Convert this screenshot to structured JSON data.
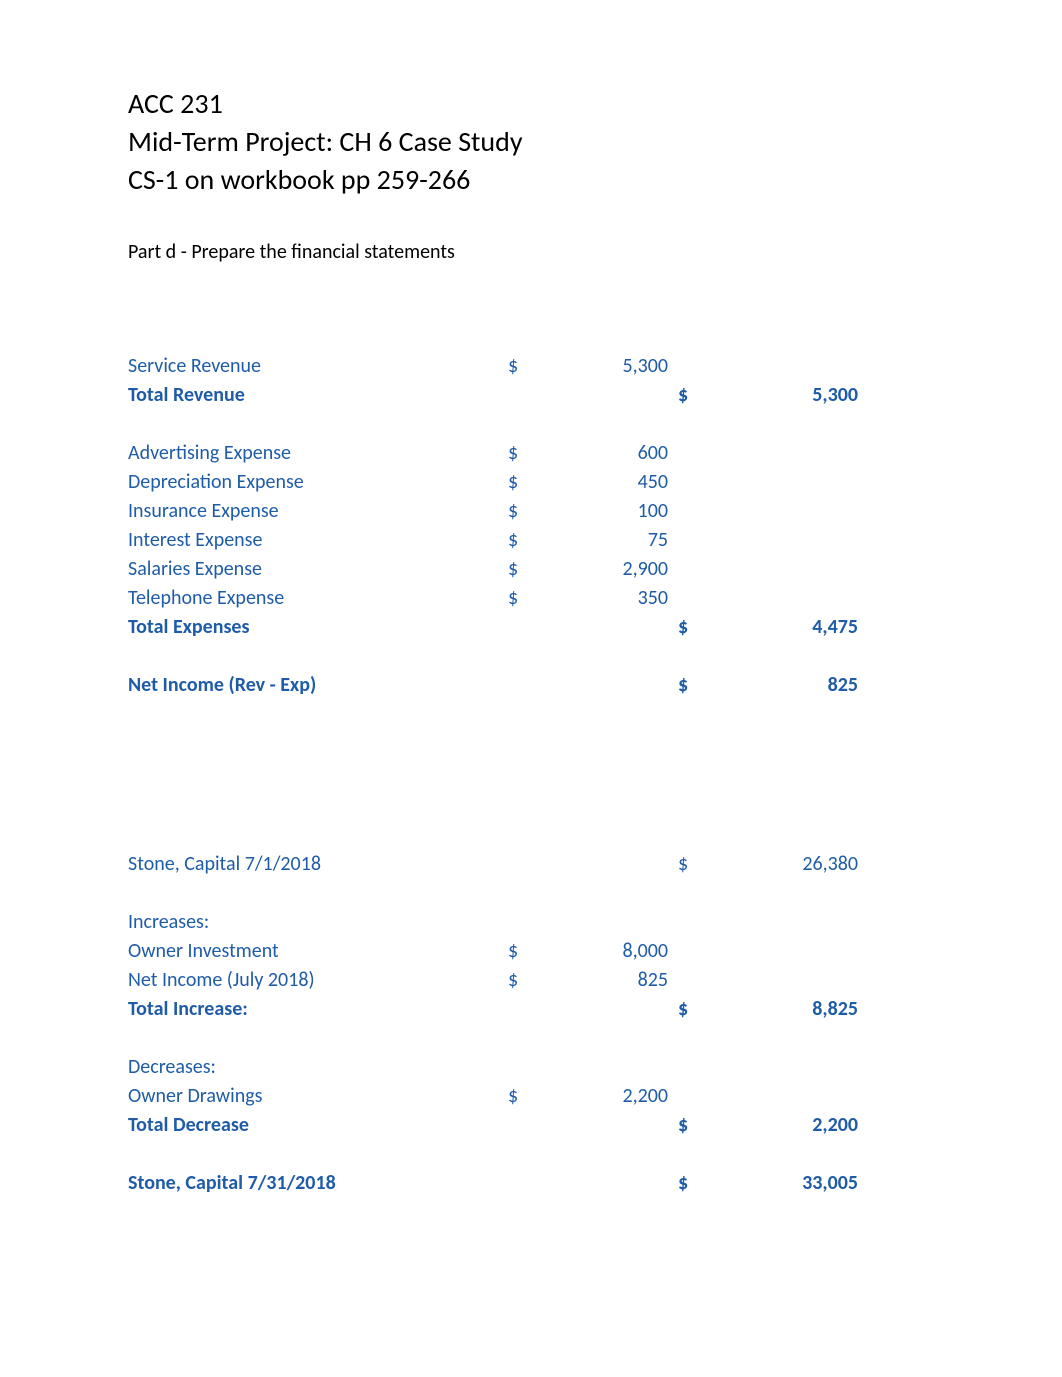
{
  "colors": {
    "text_black": "#000000",
    "text_blue": "#1f5ca8",
    "background": "#ffffff"
  },
  "typography": {
    "header_fontsize": 28,
    "subtitle_fontsize": 20,
    "row_fontsize": 20,
    "font_family": "Calibri"
  },
  "header": {
    "line1": "ACC 231",
    "line2": "Mid-Term Project: CH 6 Case Study",
    "line3": "CS-1 on workbook pp 259-266"
  },
  "subtitle": "Part d  - Prepare the financial statements",
  "income_statement": {
    "rows": [
      {
        "label": "Service Revenue",
        "col1_sym": "$",
        "col1_val": "5,300",
        "col2_sym": "",
        "col2_val": "",
        "bold": false
      },
      {
        "label": "Total Revenue",
        "col1_sym": "",
        "col1_val": "",
        "col2_sym": "$",
        "col2_val": "5,300",
        "bold": true
      }
    ],
    "expense_rows": [
      {
        "label": "Advertising Expense",
        "col1_sym": "$",
        "col1_val": "600",
        "col2_sym": "",
        "col2_val": "",
        "bold": false
      },
      {
        "label": "Depreciation Expense",
        "col1_sym": "$",
        "col1_val": "450",
        "col2_sym": "",
        "col2_val": "",
        "bold": false
      },
      {
        "label": "Insurance Expense",
        "col1_sym": "$",
        "col1_val": "100",
        "col2_sym": "",
        "col2_val": "",
        "bold": false
      },
      {
        "label": "Interest Expense",
        "col1_sym": "$",
        "col1_val": "75",
        "col2_sym": "",
        "col2_val": "",
        "bold": false
      },
      {
        "label": "Salaries Expense",
        "col1_sym": "$",
        "col1_val": "2,900",
        "col2_sym": "",
        "col2_val": "",
        "bold": false
      },
      {
        "label": "Telephone Expense",
        "col1_sym": "$",
        "col1_val": "350",
        "col2_sym": "",
        "col2_val": "",
        "bold": false
      },
      {
        "label": "Total Expenses",
        "col1_sym": "",
        "col1_val": "",
        "col2_sym": "$",
        "col2_val": "4,475",
        "bold": true
      }
    ],
    "net_income": {
      "label": "Net Income (Rev - Exp)",
      "col1_sym": "",
      "col1_val": "",
      "col2_sym": "$",
      "col2_val": "825",
      "bold": true
    }
  },
  "equity_statement": {
    "opening": {
      "label": "Stone, Capital 7/1/2018",
      "col1_sym": "",
      "col1_val": "",
      "col2_sym": "$",
      "col2_val": "26,380",
      "bold": false
    },
    "increases_header": "Increases:",
    "increases": [
      {
        "label": "Owner Investment",
        "col1_sym": "$",
        "col1_val": "8,000",
        "col2_sym": "",
        "col2_val": "",
        "bold": false
      },
      {
        "label": "Net Income (July 2018)",
        "col1_sym": "$",
        "col1_val": "825",
        "col2_sym": "",
        "col2_val": "",
        "bold": false
      },
      {
        "label": "Total Increase:",
        "col1_sym": "",
        "col1_val": "",
        "col2_sym": "$",
        "col2_val": "8,825",
        "bold": true
      }
    ],
    "decreases_header": "Decreases:",
    "decreases": [
      {
        "label": "Owner Drawings",
        "col1_sym": "$",
        "col1_val": "2,200",
        "col2_sym": "",
        "col2_val": "",
        "bold": false
      },
      {
        "label": "Total Decrease",
        "col1_sym": "",
        "col1_val": "",
        "col2_sym": "$",
        "col2_val": "2,200",
        "bold": true
      }
    ],
    "closing": {
      "label": "Stone, Capital 7/31/2018",
      "col1_sym": "",
      "col1_val": "",
      "col2_sym": "$",
      "col2_val": "33,005",
      "bold": true
    }
  }
}
